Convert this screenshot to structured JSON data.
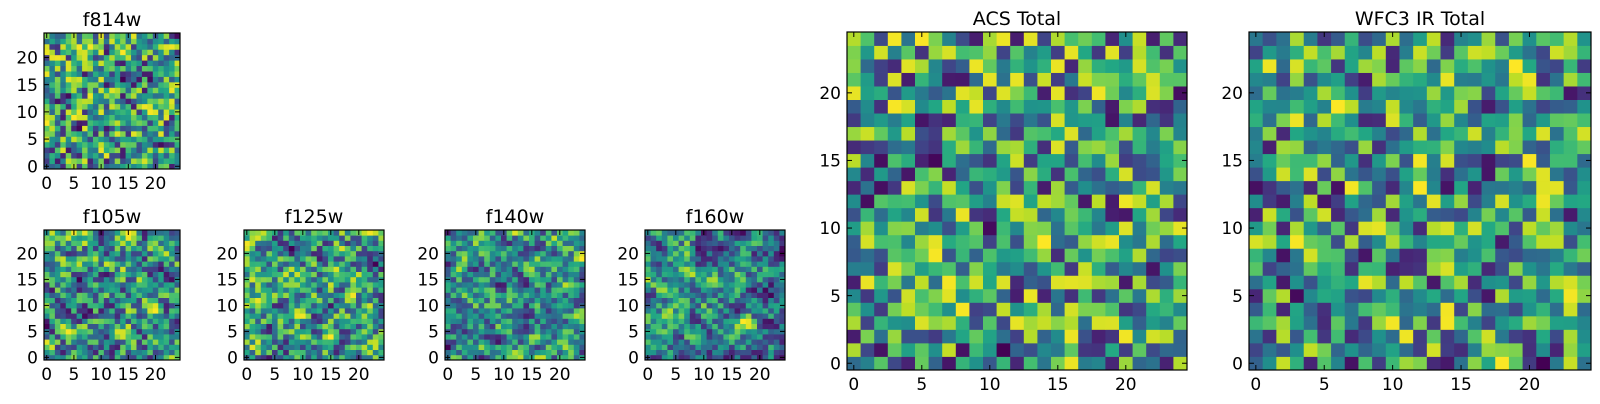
{
  "figure": {
    "colormap": "viridis"
  },
  "chart_data": [
    {
      "type": "heatmap",
      "title": "f814w",
      "grid": [
        25,
        25
      ],
      "xticks": [
        0,
        5,
        10,
        15,
        20
      ],
      "yticks": [
        0,
        5,
        10,
        15,
        20
      ],
      "xlim": [
        -0.5,
        24.5
      ],
      "ylim": [
        -0.5,
        24.5
      ],
      "pattern": {
        "seed": 11,
        "smooth": 0.15,
        "bias": 0.18
      }
    },
    {
      "type": "heatmap",
      "title": "f105w",
      "grid": [
        25,
        25
      ],
      "xticks": [
        0,
        5,
        10,
        15,
        20
      ],
      "yticks": [
        0,
        5,
        10,
        15,
        20
      ],
      "xlim": [
        -0.5,
        24.5
      ],
      "ylim": [
        -0.5,
        24.5
      ],
      "pattern": {
        "seed": 23,
        "smooth": 0.55,
        "bias": 0.0
      }
    },
    {
      "type": "heatmap",
      "title": "f125w",
      "grid": [
        25,
        25
      ],
      "xticks": [
        0,
        5,
        10,
        15,
        20
      ],
      "yticks": [
        0,
        5,
        10,
        15,
        20
      ],
      "xlim": [
        -0.5,
        24.5
      ],
      "ylim": [
        -0.5,
        24.5
      ],
      "pattern": {
        "seed": 37,
        "smooth": 0.5,
        "bias": 0.08
      }
    },
    {
      "type": "heatmap",
      "title": "f140w",
      "grid": [
        25,
        25
      ],
      "xticks": [
        0,
        5,
        10,
        15,
        20
      ],
      "yticks": [
        0,
        5,
        10,
        15,
        20
      ],
      "xlim": [
        -0.5,
        24.5
      ],
      "ylim": [
        -0.5,
        24.5
      ],
      "pattern": {
        "seed": 41,
        "smooth": 0.55,
        "bias": 0.02
      }
    },
    {
      "type": "heatmap",
      "title": "f160w",
      "grid": [
        25,
        25
      ],
      "xticks": [
        0,
        5,
        10,
        15,
        20
      ],
      "yticks": [
        0,
        5,
        10,
        15,
        20
      ],
      "xlim": [
        -0.5,
        24.5
      ],
      "ylim": [
        -0.5,
        24.5
      ],
      "pattern": {
        "seed": 53,
        "smooth": 0.6,
        "bias": -0.12
      }
    },
    {
      "type": "heatmap",
      "title": "ACS Total",
      "grid": [
        25,
        25
      ],
      "xticks": [
        0,
        5,
        10,
        15,
        20
      ],
      "yticks": [
        0,
        5,
        10,
        15,
        20
      ],
      "xlim": [
        -0.5,
        24.5
      ],
      "ylim": [
        -0.5,
        24.5
      ],
      "pattern": {
        "seed": 67,
        "smooth": 0.1,
        "bias": 0.2
      }
    },
    {
      "type": "heatmap",
      "title": "WFC3 IR Total",
      "grid": [
        25,
        25
      ],
      "xticks": [
        0,
        5,
        10,
        15,
        20
      ],
      "yticks": [
        0,
        5,
        10,
        15,
        20
      ],
      "xlim": [
        -0.5,
        24.5
      ],
      "ylim": [
        -0.5,
        24.5
      ],
      "pattern": {
        "seed": 79,
        "smooth": 0.12,
        "bias": 0.12
      }
    }
  ]
}
